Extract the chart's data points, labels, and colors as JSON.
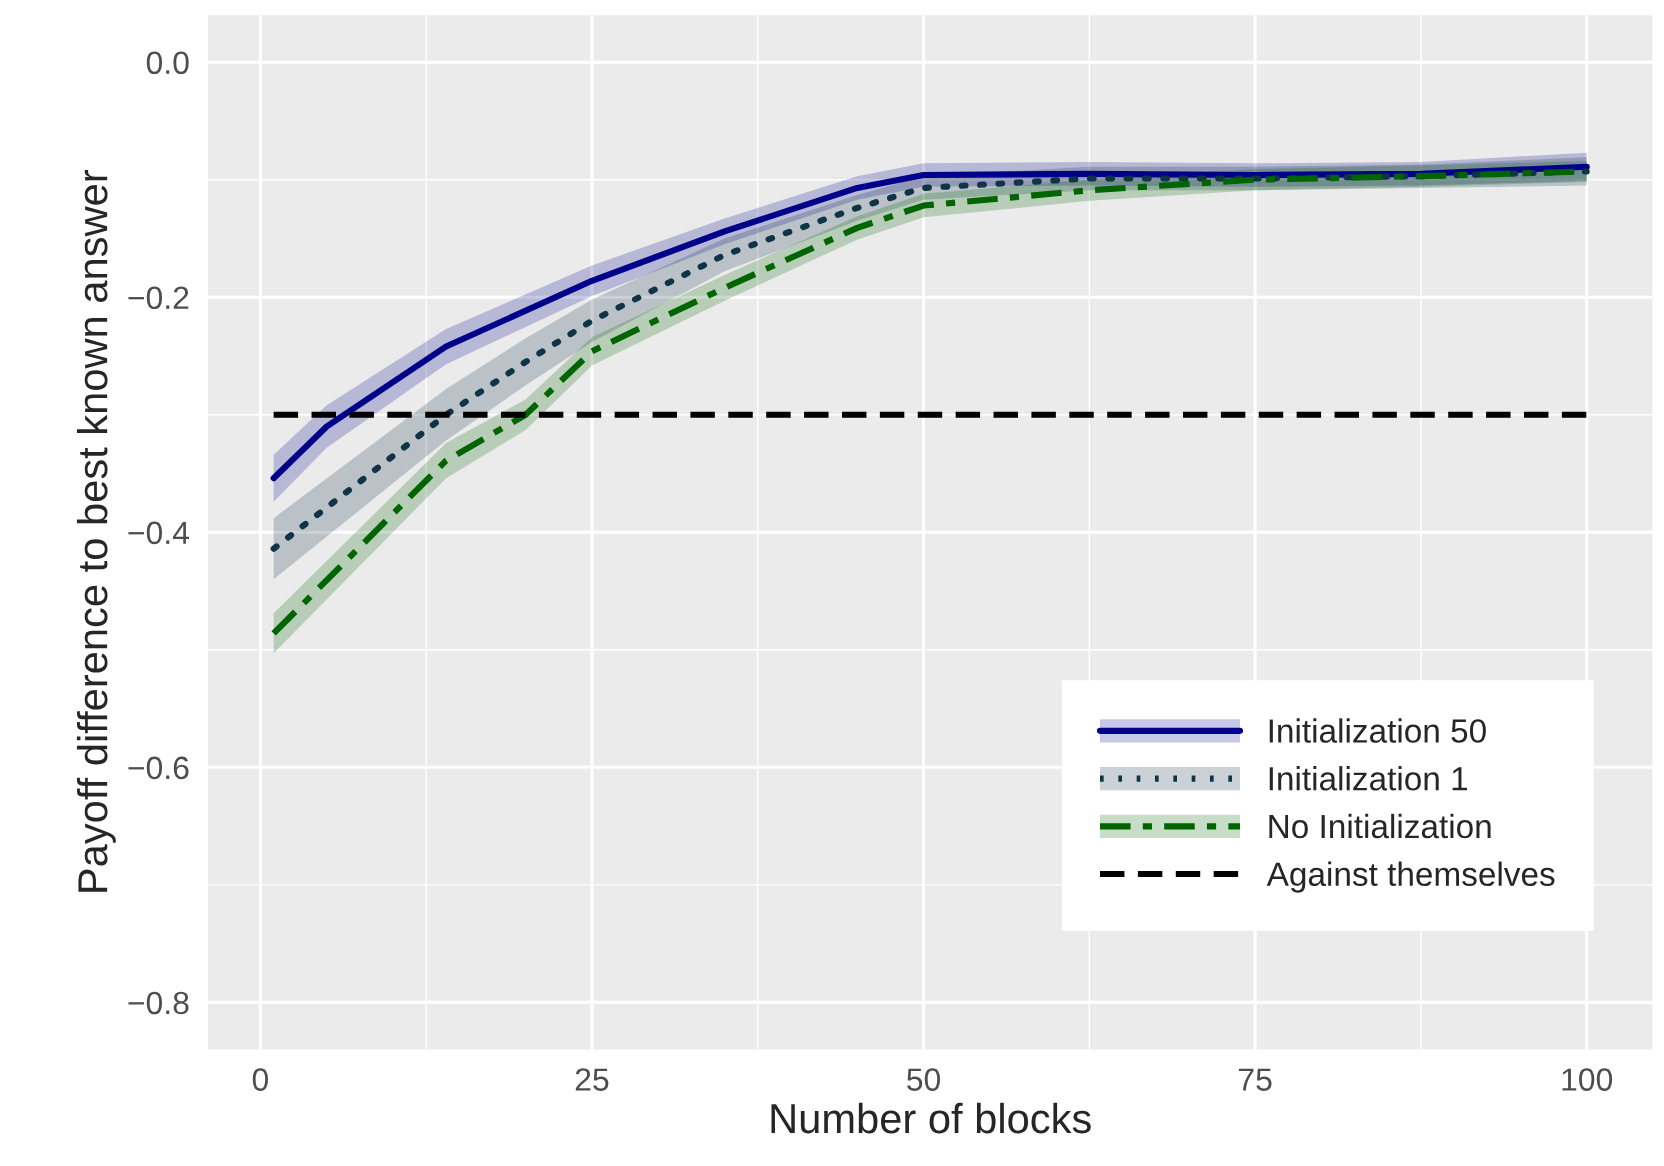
{
  "chart_data": {
    "type": "line",
    "xlabel": "Number of blocks",
    "ylabel": "Payoff difference to best known answer",
    "xlim": [
      -3.95,
      104.95
    ],
    "xticks": [
      0,
      25,
      50,
      75,
      100
    ],
    "ylim": [
      -0.84,
      0.04
    ],
    "yticks": [
      {
        "value": 0.0,
        "label": "0.0"
      },
      {
        "value": -0.2,
        "label": "−0.2"
      },
      {
        "value": -0.4,
        "label": "−0.4"
      },
      {
        "value": -0.6,
        "label": "−0.6"
      },
      {
        "value": -0.8,
        "label": "−0.8"
      }
    ],
    "grid": true,
    "legend": "bottom right",
    "series": [
      {
        "name": "Initialization 50",
        "color": "#00008b",
        "line_style": "solid",
        "x": [
          1,
          5,
          14,
          25,
          35,
          45,
          50,
          62.5,
          75,
          87.5,
          100
        ],
        "values": [
          -0.354,
          -0.31,
          -0.242,
          -0.186,
          -0.144,
          -0.107,
          -0.096,
          -0.095,
          -0.096,
          -0.095,
          -0.089
        ],
        "lower": [
          -0.374,
          -0.328,
          -0.257,
          -0.199,
          -0.155,
          -0.117,
          -0.106,
          -0.105,
          -0.106,
          -0.105,
          -0.101
        ],
        "upper": [
          -0.334,
          -0.292,
          -0.227,
          -0.173,
          -0.133,
          -0.097,
          -0.086,
          -0.085,
          -0.086,
          -0.085,
          -0.077
        ]
      },
      {
        "name": "Initialization 1",
        "color": "#0f3347",
        "line_style": "dotted",
        "x": [
          1,
          14,
          20,
          25,
          35,
          45,
          50,
          62.5,
          75,
          87.5,
          100
        ],
        "values": [
          -0.414,
          -0.3,
          -0.255,
          -0.22,
          -0.164,
          -0.124,
          -0.107,
          -0.099,
          -0.099,
          -0.097,
          -0.093
        ],
        "lower": [
          -0.44,
          -0.322,
          -0.275,
          -0.238,
          -0.178,
          -0.135,
          -0.117,
          -0.109,
          -0.109,
          -0.107,
          -0.105
        ],
        "upper": [
          -0.388,
          -0.278,
          -0.235,
          -0.202,
          -0.15,
          -0.113,
          -0.097,
          -0.089,
          -0.089,
          -0.087,
          -0.081
        ]
      },
      {
        "name": "No Initialization",
        "color": "#006400",
        "line_style": "dashdot",
        "x": [
          1,
          14,
          20,
          25,
          35,
          45,
          50,
          62.5,
          75,
          87.5,
          100
        ],
        "values": [
          -0.486,
          -0.339,
          -0.3,
          -0.246,
          -0.192,
          -0.141,
          -0.122,
          -0.109,
          -0.1,
          -0.097,
          -0.093
        ],
        "lower": [
          -0.503,
          -0.354,
          -0.313,
          -0.258,
          -0.203,
          -0.151,
          -0.132,
          -0.118,
          -0.109,
          -0.106,
          -0.102
        ],
        "upper": [
          -0.469,
          -0.324,
          -0.287,
          -0.234,
          -0.181,
          -0.131,
          -0.112,
          -0.1,
          -0.091,
          -0.088,
          -0.084
        ]
      },
      {
        "name": "Against themselves",
        "color": "#000000",
        "line_style": "dashed",
        "x": [
          1,
          100
        ],
        "values": [
          -0.3,
          -0.3
        ]
      }
    ]
  }
}
